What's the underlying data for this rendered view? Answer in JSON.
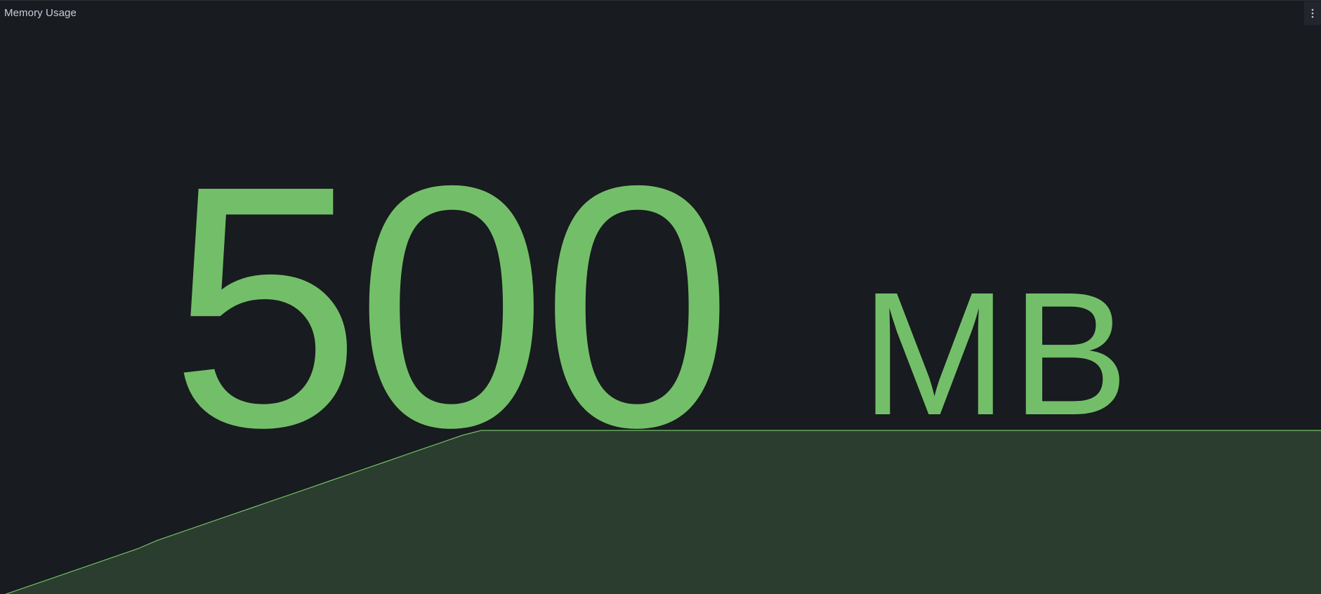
{
  "panel": {
    "title": "Memory Usage",
    "menu_icon": "kebab-vertical-icon"
  },
  "stat": {
    "value": "500",
    "unit": "MB"
  },
  "colors": {
    "background": "#181b1f",
    "value": "#73bf69",
    "sparkline_line": "#73bf69",
    "sparkline_fill": "#2a3d2e",
    "title": "#ccccdc"
  },
  "chart_data": {
    "type": "area",
    "series": [
      {
        "values": [
          0,
          4,
          8,
          12,
          16,
          20,
          24,
          28,
          33,
          37,
          41,
          45,
          49,
          53,
          57,
          61,
          65,
          69,
          73,
          77,
          81,
          85,
          89,
          93,
          97,
          100,
          100,
          100,
          100,
          100,
          100,
          100,
          100,
          100,
          100,
          100,
          100,
          100,
          100,
          100,
          100,
          100,
          100,
          100,
          100,
          100,
          100,
          100,
          100,
          100,
          100,
          100,
          100,
          100,
          100,
          100,
          100,
          100,
          100,
          100,
          100,
          100,
          100,
          100,
          100,
          100,
          100,
          100,
          100,
          100
        ]
      }
    ],
    "ylim": [
      0,
      100
    ]
  }
}
